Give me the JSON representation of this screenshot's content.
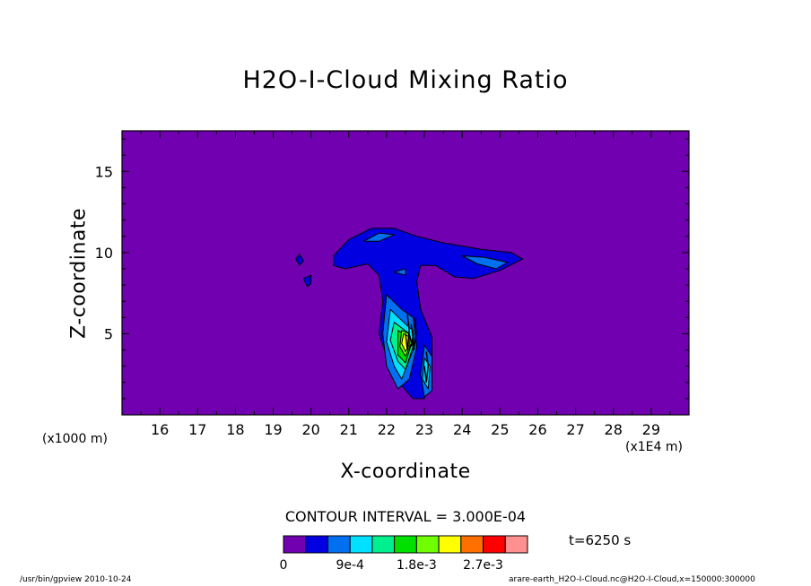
{
  "chart_data": {
    "type": "heatmap",
    "title": "H2O-I-Cloud Mixing Ratio",
    "xlabel": "X-coordinate",
    "ylabel": "Z-coordinate",
    "x_unit_left": "(x1000 m)",
    "x_unit_right": "(x1E4 m)",
    "xlim": [
      15,
      30
    ],
    "ylim": [
      0,
      17.5
    ],
    "x_ticks": [
      16,
      17,
      18,
      19,
      20,
      21,
      22,
      23,
      24,
      25,
      26,
      27,
      28,
      29
    ],
    "y_ticks": [
      5,
      10,
      15
    ],
    "contour_interval_text": "CONTOUR INTERVAL = 3.000E-04",
    "time_label": "t=6250 s",
    "colorbar": {
      "colors": [
        "#7000b0",
        "#0000e0",
        "#0070f0",
        "#00e0ff",
        "#00f090",
        "#00e000",
        "#70ff00",
        "#ffff00",
        "#ff7000",
        "#ff0000",
        "#ff9090"
      ],
      "labels": [
        "0",
        "9e-4",
        "1.8e-3",
        "2.7e-3"
      ],
      "label_index": [
        0,
        3,
        6,
        9
      ]
    },
    "background_level": 0,
    "regions": [
      {
        "level": 1,
        "points": [
          [
            20.6,
            9.8
          ],
          [
            21.0,
            10.8
          ],
          [
            21.6,
            11.5
          ],
          [
            22.2,
            11.5
          ],
          [
            22.8,
            11.0
          ],
          [
            23.5,
            10.6
          ],
          [
            24.5,
            10.2
          ],
          [
            25.3,
            10.0
          ],
          [
            25.6,
            9.6
          ],
          [
            25.0,
            8.9
          ],
          [
            24.3,
            8.4
          ],
          [
            23.8,
            8.5
          ],
          [
            23.3,
            9.2
          ],
          [
            22.9,
            9.2
          ],
          [
            22.8,
            8.2
          ],
          [
            22.9,
            6.5
          ],
          [
            23.2,
            4.8
          ],
          [
            23.2,
            3.5
          ],
          [
            23.1,
            2.2
          ],
          [
            23.0,
            1.0
          ],
          [
            22.7,
            1.0
          ],
          [
            22.4,
            1.8
          ],
          [
            22.0,
            3.6
          ],
          [
            21.8,
            5.0
          ],
          [
            21.9,
            7.0
          ],
          [
            21.8,
            8.6
          ],
          [
            21.5,
            9.3
          ],
          [
            20.9,
            9.0
          ],
          [
            20.6,
            9.2
          ]
        ]
      },
      {
        "level": 1,
        "points": [
          [
            19.6,
            9.6
          ],
          [
            19.7,
            9.9
          ],
          [
            19.8,
            9.5
          ],
          [
            19.7,
            9.2
          ]
        ]
      },
      {
        "level": 1,
        "points": [
          [
            19.8,
            8.4
          ],
          [
            20.0,
            8.6
          ],
          [
            20.0,
            8.1
          ],
          [
            19.9,
            7.9
          ]
        ]
      },
      {
        "level": 2,
        "points": [
          [
            21.4,
            10.7
          ],
          [
            21.8,
            11.2
          ],
          [
            22.2,
            11.1
          ],
          [
            21.8,
            10.7
          ]
        ]
      },
      {
        "level": 2,
        "points": [
          [
            24.0,
            9.8
          ],
          [
            24.6,
            9.7
          ],
          [
            25.2,
            9.4
          ],
          [
            24.9,
            9.0
          ],
          [
            24.4,
            9.3
          ]
        ]
      },
      {
        "level": 2,
        "points": [
          [
            22.2,
            8.8
          ],
          [
            22.5,
            9.0
          ],
          [
            22.5,
            8.6
          ]
        ]
      },
      {
        "level": 2,
        "points": [
          [
            22.0,
            7.4
          ],
          [
            22.4,
            6.5
          ],
          [
            22.7,
            6.0
          ],
          [
            22.8,
            4.2
          ],
          [
            22.6,
            2.2
          ],
          [
            22.3,
            1.6
          ],
          [
            22.0,
            3.0
          ],
          [
            21.9,
            5.0
          ]
        ]
      },
      {
        "level": 2,
        "points": [
          [
            23.0,
            4.3
          ],
          [
            23.2,
            3.6
          ],
          [
            23.2,
            1.5
          ],
          [
            23.0,
            1.1
          ],
          [
            22.9,
            2.5
          ]
        ]
      },
      {
        "level": 3,
        "points": [
          [
            22.1,
            6.5
          ],
          [
            22.5,
            5.6
          ],
          [
            22.7,
            5.2
          ],
          [
            22.7,
            4.0
          ],
          [
            22.4,
            2.2
          ],
          [
            22.2,
            3.0
          ],
          [
            22.0,
            4.5
          ]
        ]
      },
      {
        "level": 3,
        "points": [
          [
            23.0,
            3.5
          ],
          [
            23.15,
            3.0
          ],
          [
            23.1,
            1.6
          ],
          [
            22.95,
            2.2
          ]
        ]
      },
      {
        "level": 4,
        "points": [
          [
            22.2,
            5.7
          ],
          [
            22.6,
            5.0
          ],
          [
            22.7,
            4.2
          ],
          [
            22.5,
            2.8
          ],
          [
            22.3,
            3.3
          ],
          [
            22.1,
            4.6
          ]
        ]
      },
      {
        "level": 5,
        "points": [
          [
            22.3,
            5.2
          ],
          [
            22.6,
            4.8
          ],
          [
            22.65,
            4.3
          ],
          [
            22.5,
            3.2
          ],
          [
            22.3,
            3.7
          ]
        ]
      },
      {
        "level": 6,
        "points": [
          [
            22.4,
            5.2
          ],
          [
            22.6,
            5.0
          ],
          [
            22.65,
            4.4
          ],
          [
            22.5,
            3.6
          ],
          [
            22.35,
            4.2
          ]
        ]
      },
      {
        "level": 7,
        "points": [
          [
            22.45,
            5.0
          ],
          [
            22.6,
            4.8
          ],
          [
            22.6,
            4.3
          ],
          [
            22.5,
            3.9
          ],
          [
            22.4,
            4.4
          ]
        ]
      }
    ],
    "contour_lines": [
      {
        "points": [
          [
            22.55,
            6.2
          ],
          [
            22.6,
            5.2
          ],
          [
            22.55,
            4.0
          ],
          [
            22.5,
            5.0
          ]
        ]
      },
      {
        "points": [
          [
            22.75,
            6.0
          ],
          [
            22.78,
            5.0
          ],
          [
            22.72,
            4.0
          ],
          [
            22.7,
            5.0
          ]
        ]
      },
      {
        "points": [
          [
            23.05,
            3.9
          ],
          [
            23.1,
            3.0
          ],
          [
            23.05,
            2.0
          ],
          [
            23.0,
            3.0
          ]
        ]
      },
      {
        "points": [
          [
            22.65,
            5.6
          ],
          [
            22.7,
            4.8
          ],
          [
            22.65,
            4.2
          ]
        ]
      }
    ]
  },
  "footer": {
    "left": "/usr/bin/gpview  2010-10-24",
    "right": "arare-earth_H2O-I-Cloud.nc@H2O-I-Cloud,x=150000:300000"
  }
}
